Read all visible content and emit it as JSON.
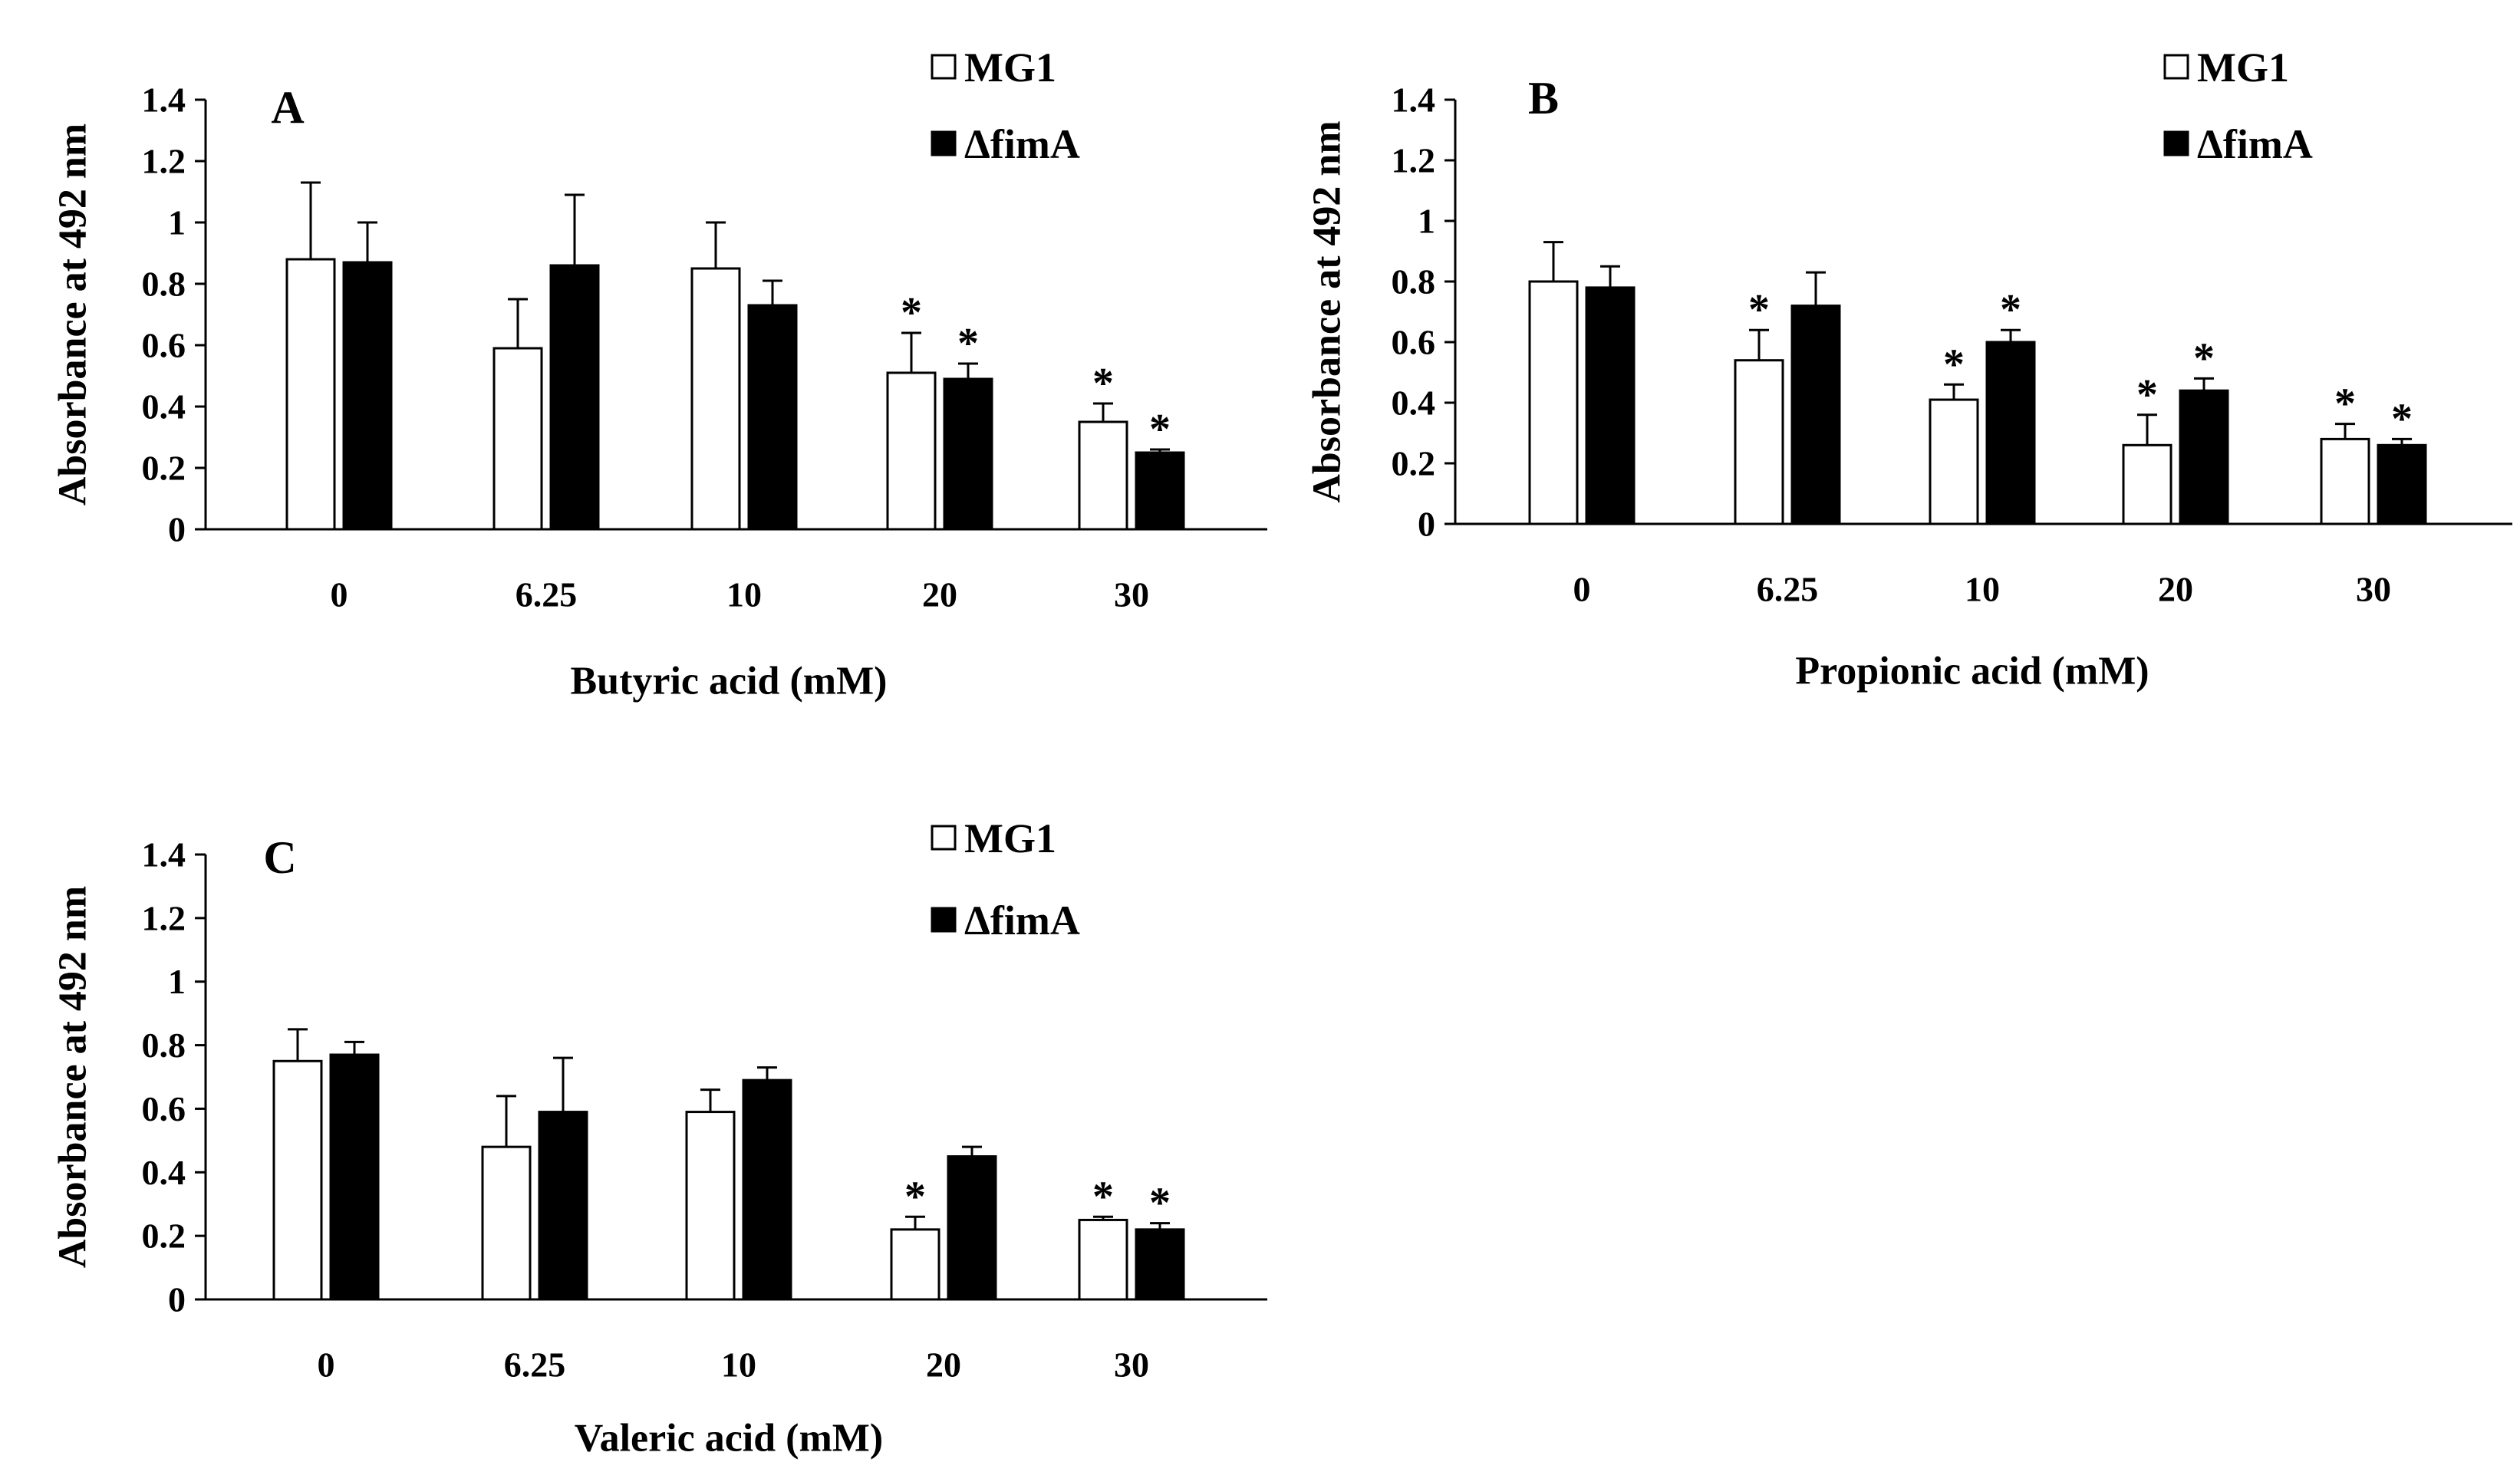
{
  "chart_data": [
    {
      "panel": "A",
      "type": "bar",
      "categories": [
        "0",
        "6.25",
        "10",
        "20",
        "30"
      ],
      "series": [
        {
          "name": "MG1",
          "color": "#ffffff",
          "values": [
            0.88,
            0.59,
            0.85,
            0.51,
            0.35
          ],
          "errors": [
            0.25,
            0.16,
            0.15,
            0.13,
            0.06
          ]
        },
        {
          "name": "ΔfimA",
          "color": "#000000",
          "values": [
            0.87,
            0.86,
            0.73,
            0.49,
            0.25
          ],
          "errors": [
            0.13,
            0.23,
            0.08,
            0.05,
            0.01
          ]
        }
      ],
      "significance": [
        [
          false,
          false,
          false,
          true,
          true
        ],
        [
          false,
          false,
          false,
          true,
          true
        ]
      ],
      "significance_symbol": "*",
      "xlabel": "Butyric acid (mM)",
      "ylabel": "Absorbance at 492 nm",
      "yticks": [
        "0",
        "0.2",
        "0.4",
        "0.6",
        "0.8",
        "1",
        "1.2",
        "1.4"
      ],
      "ylim": [
        0,
        1.4
      ]
    },
    {
      "panel": "B",
      "type": "bar",
      "categories": [
        "0",
        "6.25",
        "10",
        "20",
        "30"
      ],
      "series": [
        {
          "name": "MG1",
          "color": "#ffffff",
          "values": [
            0.8,
            0.54,
            0.41,
            0.26,
            0.28
          ],
          "errors": [
            0.13,
            0.1,
            0.05,
            0.1,
            0.05
          ]
        },
        {
          "name": "ΔfimA",
          "color": "#000000",
          "values": [
            0.78,
            0.72,
            0.6,
            0.44,
            0.26
          ],
          "errors": [
            0.07,
            0.11,
            0.04,
            0.04,
            0.02
          ]
        }
      ],
      "significance": [
        [
          false,
          true,
          true,
          true,
          true
        ],
        [
          false,
          false,
          true,
          true,
          true
        ]
      ],
      "significance_symbol": "*",
      "xlabel": "Propionic acid (mM)",
      "ylabel": "Absorbance at 492 nm",
      "yticks": [
        "0",
        "0.2",
        "0.4",
        "0.6",
        "0.8",
        "1",
        "1.2",
        "1.4"
      ],
      "ylim": [
        0,
        1.4
      ]
    },
    {
      "panel": "C",
      "type": "bar",
      "categories": [
        "0",
        "6.25",
        "10",
        "20",
        "30"
      ],
      "series": [
        {
          "name": "MG1",
          "color": "#ffffff",
          "values": [
            0.75,
            0.48,
            0.59,
            0.22,
            0.25
          ],
          "errors": [
            0.1,
            0.16,
            0.07,
            0.04,
            0.01
          ]
        },
        {
          "name": "ΔfimA",
          "color": "#000000",
          "values": [
            0.77,
            0.59,
            0.69,
            0.45,
            0.22
          ],
          "errors": [
            0.04,
            0.17,
            0.04,
            0.03,
            0.02
          ]
        }
      ],
      "significance": [
        [
          false,
          false,
          false,
          true,
          true
        ],
        [
          false,
          false,
          false,
          false,
          true
        ]
      ],
      "significance_symbol": "*",
      "xlabel": "Valeric acid (mM)",
      "ylabel": "Absorbance at 492 nm",
      "yticks": [
        "0",
        "0.2",
        "0.4",
        "0.6",
        "0.8",
        "1",
        "1.2",
        "1.4"
      ],
      "ylim": [
        0,
        1.4
      ]
    }
  ]
}
